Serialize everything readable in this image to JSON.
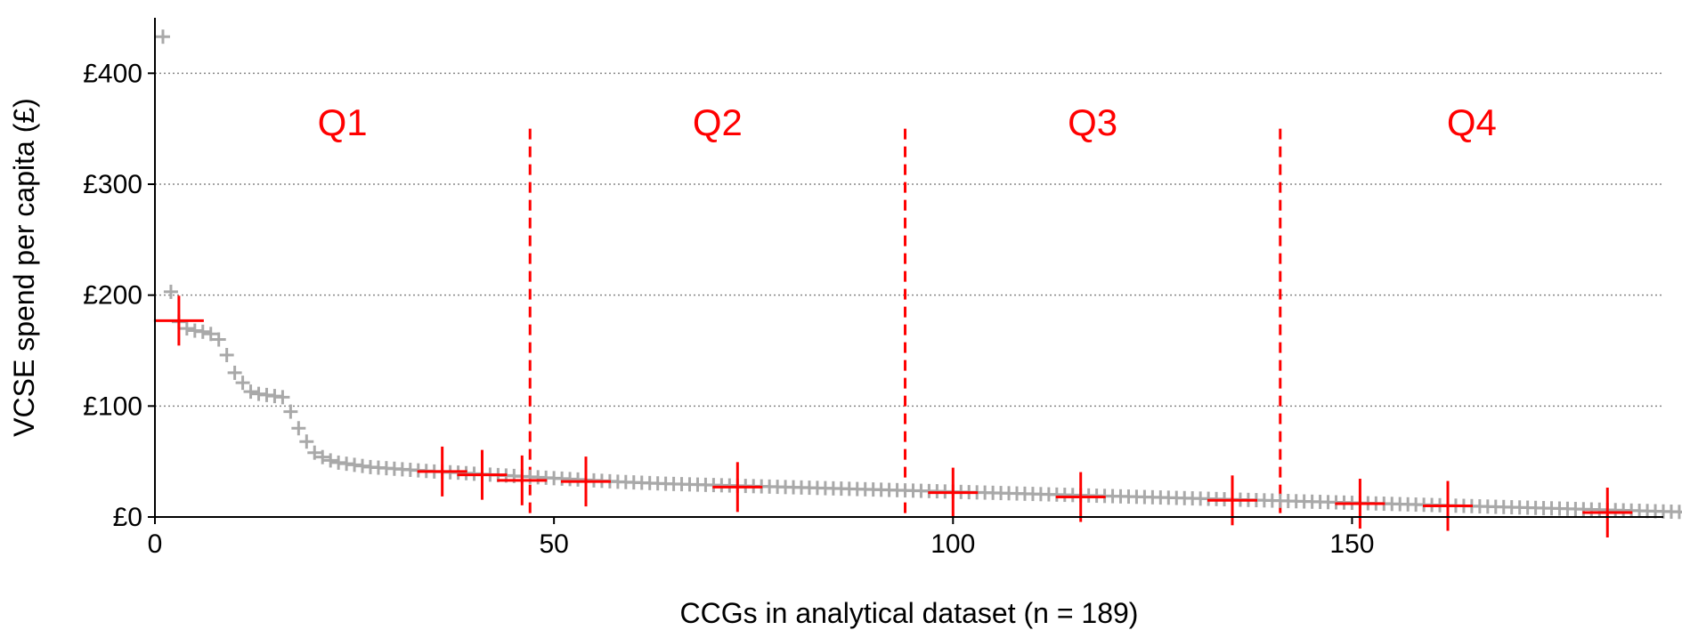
{
  "chart_data": {
    "type": "scatter",
    "xlabel": "CCGs in analytical dataset (n = 189)",
    "ylabel": "VCSE spend per capita (£)",
    "xlim": [
      0,
      189
    ],
    "ylim": [
      0,
      450
    ],
    "x_ticks": [
      0,
      50,
      100,
      150
    ],
    "y_ticks": [
      {
        "value": 0,
        "label": "£0"
      },
      {
        "value": 100,
        "label": "£100"
      },
      {
        "value": 200,
        "label": "£200"
      },
      {
        "value": 300,
        "label": "£300"
      },
      {
        "value": 400,
        "label": "£400"
      }
    ],
    "grid": "horizontal dotted",
    "colors": {
      "points": "#a9a9a9",
      "highlight": "#ff0000",
      "grid": "#888888"
    },
    "quartile_dividers": [
      47,
      94,
      141
    ],
    "quartile_labels": [
      {
        "label": "Q1",
        "x": 23.5
      },
      {
        "label": "Q2",
        "x": 70.5
      },
      {
        "label": "Q3",
        "x": 117.5
      },
      {
        "label": "Q4",
        "x": 165
      }
    ],
    "series": [
      {
        "values": [
          433,
          203,
          176,
          170,
          168,
          167,
          165,
          160,
          146,
          130,
          121,
          113,
          111,
          110,
          109,
          108,
          95,
          80,
          68,
          58,
          54,
          51,
          49,
          48,
          47,
          46,
          45,
          44.5,
          44,
          43.5,
          43,
          42.5,
          42,
          41.5,
          41,
          40.7,
          40.3,
          40,
          39.5,
          39,
          38.6,
          38.2,
          37.8,
          37.4,
          37,
          36.6,
          36.2,
          35.8,
          35.4,
          35,
          34.6,
          34.2,
          33.8,
          33.4,
          33,
          32.6,
          32.2,
          31.8,
          31.5,
          31.2,
          30.9,
          30.6,
          30.3,
          30,
          29.8,
          29.6,
          29.4,
          29.2,
          29,
          28.8,
          28.6,
          28.4,
          28.2,
          28,
          27.8,
          27.6,
          27.4,
          27.2,
          27,
          26.8,
          26.6,
          26.4,
          26.2,
          26,
          25.8,
          25.6,
          25.4,
          25.2,
          25,
          24.8,
          24.6,
          24.4,
          24.2,
          24,
          23.8,
          23.6,
          23.4,
          23.2,
          23,
          22.8,
          22.6,
          22.4,
          22.2,
          22,
          21.8,
          21.6,
          21.4,
          21.2,
          21,
          20.8,
          20.6,
          20.4,
          20.2,
          20,
          19.8,
          19.6,
          19.4,
          19.2,
          19,
          18.8,
          18.6,
          18.4,
          18.2,
          18,
          17.8,
          17.6,
          17.4,
          17.2,
          17,
          16.8,
          16.6,
          16.4,
          16.2,
          16,
          15.8,
          15.6,
          15.4,
          15.2,
          15,
          14.8,
          14.6,
          14.4,
          14.2,
          14,
          13.8,
          13.6,
          13.4,
          13.2,
          13,
          12.8,
          12.6,
          12.4,
          12.2,
          12,
          11.8,
          11.6,
          11.4,
          11.2,
          11,
          10.8,
          10.6,
          10.4,
          10.2,
          10,
          9.8,
          9.6,
          9.4,
          9.2,
          9,
          8.8,
          8.6,
          8.4,
          8.2,
          8,
          7.8,
          7.6,
          7.4,
          7.2,
          7,
          6.8,
          6.6,
          6.4,
          6.2,
          6,
          5.8,
          5.6,
          5.4,
          5.2,
          5,
          4.8,
          4.6,
          4.4,
          4.2,
          4,
          3.8,
          3.6,
          3.4
        ]
      }
    ],
    "highlighted_points": [
      {
        "x": 3,
        "y": 177
      },
      {
        "x": 36,
        "y": 41
      },
      {
        "x": 41,
        "y": 38
      },
      {
        "x": 46,
        "y": 33
      },
      {
        "x": 54,
        "y": 32
      },
      {
        "x": 73,
        "y": 27
      },
      {
        "x": 100,
        "y": 22
      },
      {
        "x": 116,
        "y": 18
      },
      {
        "x": 135,
        "y": 15
      },
      {
        "x": 151,
        "y": 12
      },
      {
        "x": 162,
        "y": 10
      },
      {
        "x": 182,
        "y": 4
      }
    ]
  }
}
